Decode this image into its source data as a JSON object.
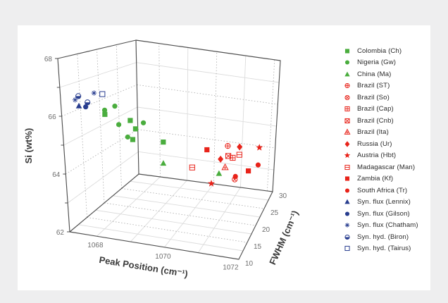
{
  "page": {
    "background": "#eeeeef",
    "canvas_background": "#ffffff"
  },
  "chart_data": {
    "type": "scatter",
    "subtype": "3d-scatter",
    "title": "",
    "axes": {
      "x": {
        "label": "Peak Position (cm⁻¹)",
        "range": [
          1067.2,
          1072.2
        ],
        "ticks": [
          1068,
          1070,
          1072
        ]
      },
      "y": {
        "label": "FWHM (cm⁻¹)",
        "range": [
          10,
          30
        ],
        "ticks": [
          10,
          15,
          20,
          25,
          30
        ]
      },
      "z": {
        "label": "Si (wt%)",
        "range": [
          62,
          68
        ],
        "ticks": [
          62,
          64,
          66,
          68
        ]
      }
    },
    "grid": "on",
    "legend_position": "right",
    "colors": {
      "natural_green": "#4aad3e",
      "natural_red": "#e8231a",
      "synthetic_blue": "#283d8f"
    },
    "series": [
      {
        "name": "Colombia (Ch)",
        "marker": "filled-square",
        "color": "#4aad3e",
        "points": [
          [
            1068.15,
            13,
            66.05
          ],
          [
            1068.7,
            15,
            65.8
          ],
          [
            1068.95,
            14,
            65.6
          ],
          [
            1068.85,
            14,
            65.2
          ],
          [
            1069.5,
            17,
            65.0
          ]
        ]
      },
      {
        "name": "Nigeria (Gw)",
        "marker": "filled-circle",
        "color": "#4aad3e",
        "points": [
          [
            1068.15,
            13,
            66.2
          ],
          [
            1068.25,
            15,
            66.25
          ],
          [
            1068.55,
            13,
            65.75
          ],
          [
            1069.0,
            16,
            65.7
          ],
          [
            1068.8,
            13,
            65.35
          ]
        ]
      },
      {
        "name": "China (Ma)",
        "marker": "filled-triangle",
        "color": "#4aad3e",
        "points": [
          [
            1069.75,
            14,
            64.5
          ],
          [
            1071.0,
            20,
            63.8
          ]
        ]
      },
      {
        "name": "Brazil (ST)",
        "marker": "circle-plus",
        "color": "#e8231a",
        "points": [
          [
            1070.9,
            25,
            64.4
          ]
        ]
      },
      {
        "name": "Brazil (So)",
        "marker": "circle-x",
        "color": "#e8231a",
        "points": [
          [
            1071.3,
            23,
            63.3
          ]
        ]
      },
      {
        "name": "Brazil (Cap)",
        "marker": "square-plus",
        "color": "#e8231a",
        "points": [
          [
            1071.15,
            24,
            64.05
          ]
        ]
      },
      {
        "name": "Brazil (Cnb)",
        "marker": "square-x",
        "color": "#e8231a",
        "points": [
          [
            1071.0,
            24,
            64.1
          ]
        ]
      },
      {
        "name": "Brazil (Ita)",
        "marker": "triangle-plus",
        "color": "#e8231a",
        "points": [
          [
            1071.05,
            22,
            63.85
          ]
        ]
      },
      {
        "name": "Russia (Ur)",
        "marker": "filled-diamond",
        "color": "#e8231a",
        "points": [
          [
            1071.15,
            27,
            64.2
          ],
          [
            1070.9,
            22,
            64.15
          ]
        ]
      },
      {
        "name": "Austria (Hbt)",
        "marker": "filled-star",
        "color": "#e8231a",
        "points": [
          [
            1071.7,
            29,
            64.05
          ],
          [
            1070.9,
            18,
            63.6
          ]
        ]
      },
      {
        "name": "Madagascar (Man)",
        "marker": "square-hline",
        "color": "#e8231a",
        "points": [
          [
            1071.3,
            25,
            64.1
          ],
          [
            1070.3,
            18,
            64.1
          ]
        ]
      },
      {
        "name": "Zambia (Kf)",
        "marker": "filled-square",
        "color": "#e8231a",
        "points": [
          [
            1070.45,
            22,
            64.45
          ],
          [
            1071.55,
            26,
            63.35
          ]
        ]
      },
      {
        "name": "South Africa (Tr)",
        "marker": "filled-circle",
        "color": "#e8231a",
        "points": [
          [
            1071.75,
            28,
            63.4
          ],
          [
            1071.25,
            24,
            63.3
          ]
        ]
      },
      {
        "name": "Syn. flux (Lennix)",
        "marker": "filled-triangle",
        "color": "#283d8f",
        "points": [
          [
            1067.5,
            12,
            66.3
          ]
        ]
      },
      {
        "name": "Syn. flux (Gilson)",
        "marker": "filled-circle",
        "color": "#283d8f",
        "points": [
          [
            1067.7,
            12,
            66.3
          ]
        ]
      },
      {
        "name": "Syn. flux (Chatham)",
        "marker": "asterisk",
        "color": "#283d8f",
        "points": [
          [
            1067.4,
            12,
            66.5
          ],
          [
            1067.75,
            14,
            66.7
          ]
        ]
      },
      {
        "name": "Syn. hyd. (Biron)",
        "marker": "half-circle",
        "color": "#283d8f",
        "points": [
          [
            1067.5,
            12,
            66.65
          ],
          [
            1067.65,
            13,
            66.4
          ]
        ]
      },
      {
        "name": "Syn. hyd. (Tairus)",
        "marker": "open-square",
        "color": "#283d8f",
        "points": [
          [
            1068.0,
            14,
            66.7
          ]
        ]
      }
    ]
  }
}
